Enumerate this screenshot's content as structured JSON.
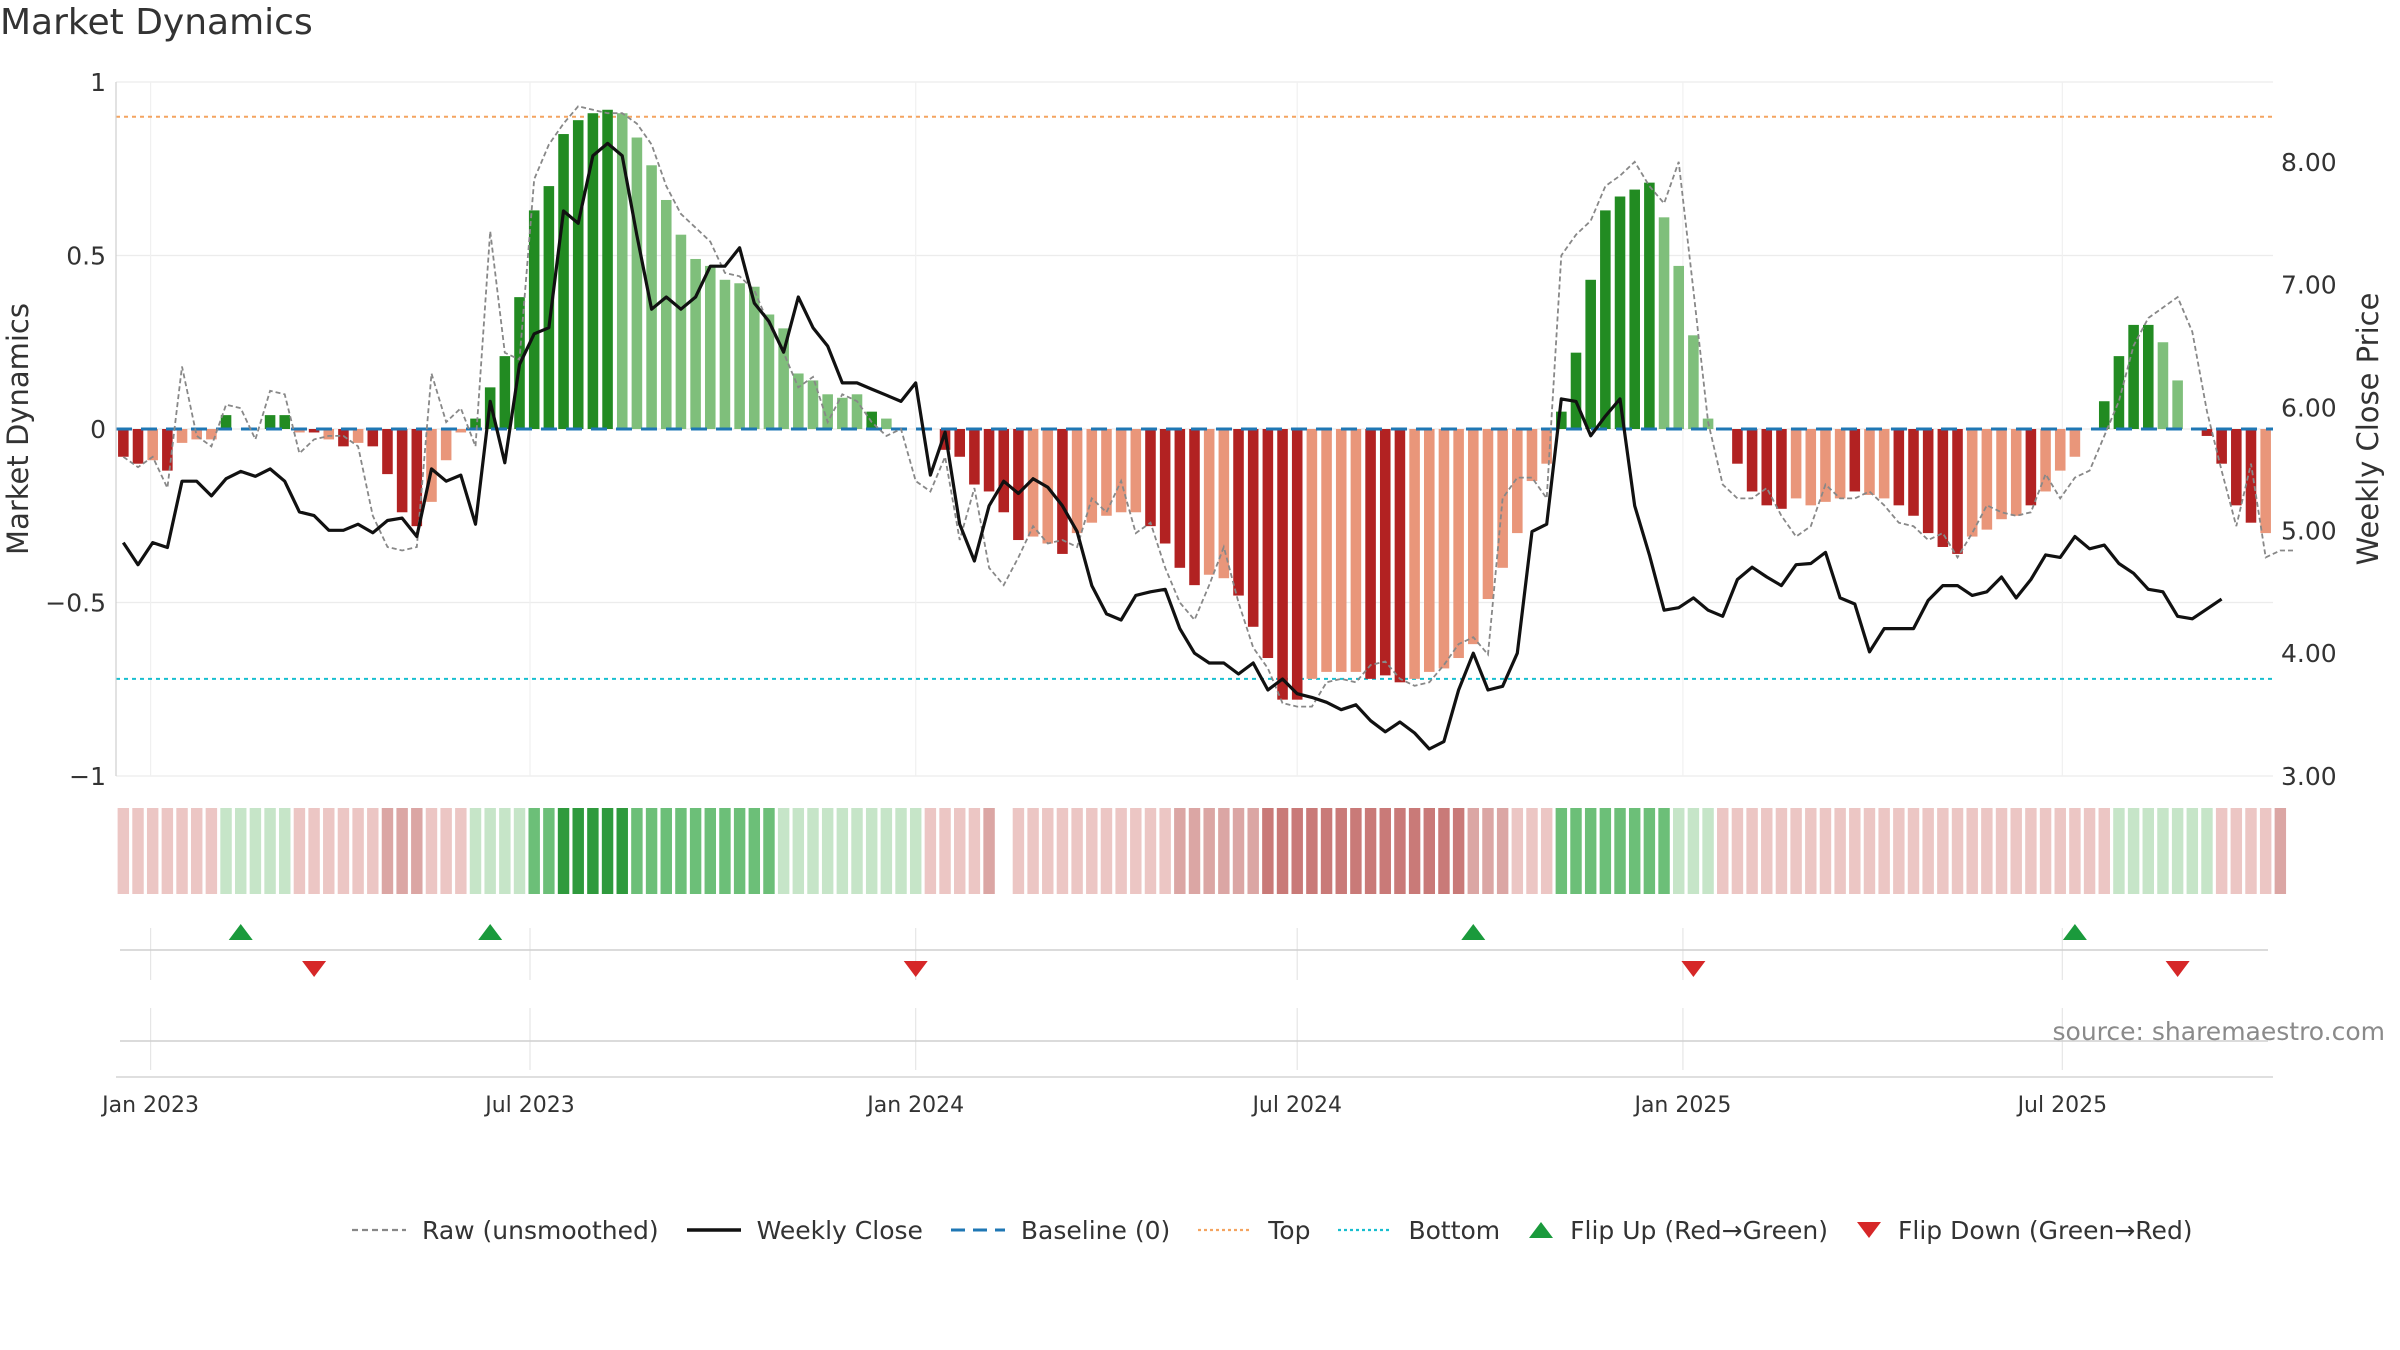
{
  "title": "Market Dynamics",
  "source": "source: sharemaestro.com",
  "colors": {
    "strong_green": "#228b22",
    "light_green": "#7fbf7b",
    "strong_red": "#b22222",
    "light_red": "#e9967a",
    "close_line": "#111111",
    "raw_line": "#888888",
    "baseline": "#1f77b4",
    "top": "#f4a460",
    "bottom": "#17becf",
    "flip_up": "#1a9a3c",
    "flip_down": "#d62728"
  },
  "legend": [
    {
      "label": "Raw (unsmoothed)",
      "icon": "dashed-gray-line"
    },
    {
      "label": "Weekly Close",
      "icon": "solid-black-line"
    },
    {
      "label": "Baseline (0)",
      "icon": "dashed-blue-line"
    },
    {
      "label": "Top",
      "icon": "dotted-orange-line"
    },
    {
      "label": "Bottom",
      "icon": "dotted-cyan-line"
    },
    {
      "label": "Flip Up (Red→Green)",
      "icon": "green-up-triangle"
    },
    {
      "label": "Flip Down (Green→Red)",
      "icon": "red-down-triangle"
    }
  ],
  "chart_data": {
    "type": "bar",
    "title": "Market Dynamics",
    "ylabel": "Market Dynamics",
    "y2label": "Weekly Close Price",
    "ylim": [
      -1,
      1
    ],
    "y2lim": [
      3.0,
      8.65
    ],
    "yticks": [
      "1",
      "0.5",
      "0",
      "−0.5",
      "−1"
    ],
    "y2ticks": [
      "8.00",
      "7.00",
      "6.00",
      "5.00",
      "4.00",
      "3.00"
    ],
    "xticks": [
      "Jan 2023",
      "Jul 2023",
      "Jan 2024",
      "Jul 2024",
      "Jan 2025",
      "Jul 2025"
    ],
    "top_line": 0.9,
    "bottom_line": -0.72,
    "baseline": 0,
    "grid": true,
    "legend_position": "bottom",
    "start_date": "2022-12-19",
    "bar_values": [
      -0.08,
      -0.1,
      -0.09,
      -0.12,
      -0.04,
      -0.03,
      -0.03,
      0.04,
      0.0,
      0.0,
      0.04,
      0.04,
      -0.01,
      -0.01,
      -0.03,
      -0.05,
      -0.04,
      -0.05,
      -0.13,
      -0.24,
      -0.28,
      -0.21,
      -0.09,
      -0.01,
      0.03,
      0.12,
      0.21,
      0.38,
      0.63,
      0.7,
      0.85,
      0.89,
      0.91,
      0.92,
      0.91,
      0.84,
      0.76,
      0.66,
      0.56,
      0.49,
      0.47,
      0.43,
      0.42,
      0.41,
      0.33,
      0.29,
      0.16,
      0.14,
      0.1,
      0.09,
      0.1,
      0.05,
      0.03,
      0.0,
      0.0,
      0.0,
      -0.06,
      -0.08,
      -0.16,
      -0.18,
      -0.24,
      -0.32,
      -0.31,
      -0.33,
      -0.36,
      -0.3,
      -0.27,
      -0.25,
      -0.24,
      -0.24,
      -0.28,
      -0.33,
      -0.4,
      -0.45,
      -0.42,
      -0.43,
      -0.48,
      -0.57,
      -0.66,
      -0.78,
      -0.78,
      -0.72,
      -0.7,
      -0.7,
      -0.7,
      -0.72,
      -0.71,
      -0.73,
      -0.72,
      -0.7,
      -0.69,
      -0.66,
      -0.62,
      -0.49,
      -0.4,
      -0.3,
      -0.15,
      -0.1,
      0.05,
      0.22,
      0.43,
      0.63,
      0.67,
      0.69,
      0.71,
      0.61,
      0.47,
      0.27,
      0.03,
      0.0,
      -0.1,
      -0.18,
      -0.22,
      -0.23,
      -0.2,
      -0.22,
      -0.21,
      -0.2,
      -0.18,
      -0.19,
      -0.2,
      -0.22,
      -0.25,
      -0.3,
      -0.34,
      -0.36,
      -0.31,
      -0.29,
      -0.26,
      -0.25,
      -0.22,
      -0.18,
      -0.12,
      -0.08,
      0.0,
      0.08,
      0.21,
      0.3,
      0.3,
      0.25,
      0.14,
      0.0,
      -0.02,
      -0.1,
      -0.22,
      -0.27,
      -0.3
    ],
    "strength_codes": [
      2,
      2,
      1,
      2,
      1,
      1,
      1,
      2,
      0,
      0,
      2,
      2,
      1,
      2,
      1,
      2,
      1,
      2,
      2,
      2,
      2,
      1,
      1,
      1,
      2,
      2,
      2,
      2,
      2,
      2,
      2,
      2,
      2,
      2,
      1,
      1,
      1,
      1,
      1,
      1,
      1,
      1,
      1,
      1,
      1,
      1,
      1,
      1,
      1,
      1,
      1,
      2,
      1,
      0,
      0,
      0,
      2,
      2,
      2,
      2,
      2,
      2,
      1,
      1,
      2,
      1,
      1,
      1,
      1,
      1,
      2,
      2,
      2,
      2,
      1,
      1,
      2,
      2,
      2,
      2,
      2,
      1,
      1,
      1,
      1,
      2,
      2,
      2,
      1,
      1,
      1,
      1,
      1,
      1,
      1,
      1,
      1,
      1,
      2,
      2,
      2,
      2,
      2,
      2,
      2,
      1,
      1,
      1,
      1,
      0,
      2,
      2,
      2,
      2,
      1,
      1,
      1,
      1,
      2,
      1,
      1,
      2,
      2,
      2,
      2,
      2,
      1,
      1,
      1,
      1,
      2,
      1,
      1,
      1,
      0,
      2,
      2,
      2,
      2,
      1,
      1,
      0,
      2,
      2,
      2,
      2
    ],
    "raw_values": [
      -0.08,
      -0.11,
      -0.08,
      -0.17,
      0.18,
      -0.02,
      -0.05,
      0.07,
      0.06,
      -0.03,
      0.11,
      0.1,
      -0.07,
      -0.03,
      -0.02,
      -0.02,
      -0.05,
      -0.25,
      -0.34,
      -0.35,
      -0.34,
      0.16,
      0.02,
      0.06,
      -0.05,
      0.57,
      0.22,
      0.2,
      0.72,
      0.82,
      0.88,
      0.93,
      0.92,
      0.91,
      0.91,
      0.88,
      0.82,
      0.7,
      0.62,
      0.58,
      0.54,
      0.45,
      0.44,
      0.4,
      0.3,
      0.22,
      0.12,
      0.15,
      0.02,
      0.1,
      0.08,
      0.02,
      -0.02,
      0.0,
      -0.15,
      -0.18,
      -0.08,
      -0.32,
      -0.17,
      -0.4,
      -0.45,
      -0.37,
      -0.28,
      -0.33,
      -0.32,
      -0.34,
      -0.2,
      -0.24,
      -0.15,
      -0.3,
      -0.27,
      -0.4,
      -0.5,
      -0.55,
      -0.45,
      -0.34,
      -0.5,
      -0.63,
      -0.69,
      -0.79,
      -0.8,
      -0.8,
      -0.73,
      -0.72,
      -0.73,
      -0.68,
      -0.67,
      -0.72,
      -0.74,
      -0.73,
      -0.68,
      -0.62,
      -0.6,
      -0.65,
      -0.2,
      -0.14,
      -0.14,
      -0.2,
      0.5,
      0.56,
      0.6,
      0.7,
      0.73,
      0.77,
      0.7,
      0.65,
      0.77,
      0.4,
      0.02,
      -0.16,
      -0.2,
      -0.2,
      -0.17,
      -0.25,
      -0.31,
      -0.28,
      -0.16,
      -0.2,
      -0.2,
      -0.18,
      -0.22,
      -0.27,
      -0.28,
      -0.32,
      -0.3,
      -0.37,
      -0.3,
      -0.22,
      -0.24,
      -0.25,
      -0.24,
      -0.13,
      -0.2,
      -0.14,
      -0.12,
      -0.02,
      0.08,
      0.24,
      0.32,
      0.35,
      0.38,
      0.28,
      0.05,
      -0.12,
      -0.28,
      -0.1,
      -0.37,
      -0.35,
      -0.35
    ],
    "close_values": [
      4.9,
      4.72,
      4.9,
      4.86,
      5.4,
      5.4,
      5.28,
      5.42,
      5.48,
      5.44,
      5.5,
      5.4,
      5.15,
      5.12,
      5.0,
      5.0,
      5.05,
      4.98,
      5.08,
      5.1,
      4.95,
      5.5,
      5.4,
      5.45,
      5.05,
      6.05,
      5.55,
      6.35,
      6.6,
      6.65,
      7.6,
      7.5,
      8.05,
      8.15,
      8.05,
      7.4,
      6.8,
      6.9,
      6.8,
      6.9,
      7.15,
      7.15,
      7.3,
      6.85,
      6.7,
      6.45,
      6.9,
      6.65,
      6.5,
      6.2,
      6.2,
      6.15,
      6.1,
      6.05,
      6.2,
      5.45,
      5.8,
      5.05,
      4.75,
      5.2,
      5.4,
      5.3,
      5.42,
      5.35,
      5.2,
      4.99,
      4.55,
      4.32,
      4.27,
      4.47,
      4.5,
      4.52,
      4.2,
      4.0,
      3.92,
      3.92,
      3.83,
      3.92,
      3.7,
      3.79,
      3.67,
      3.64,
      3.6,
      3.54,
      3.58,
      3.45,
      3.36,
      3.44,
      3.35,
      3.22,
      3.28,
      3.7,
      4.0,
      3.7,
      3.73,
      4.0,
      4.99,
      5.05,
      6.07,
      6.05,
      5.77,
      5.93,
      6.07,
      5.2,
      4.8,
      4.35,
      4.37,
      4.45,
      4.35,
      4.3,
      4.6,
      4.7,
      4.62,
      4.55,
      4.72,
      4.73,
      4.82,
      4.45,
      4.4,
      4.01,
      4.2,
      4.2,
      4.2,
      4.43,
      4.55,
      4.55,
      4.47,
      4.5,
      4.62,
      4.45,
      4.6,
      4.8,
      4.78,
      4.95,
      4.85,
      4.88,
      4.73,
      4.65,
      4.52,
      4.5,
      4.3,
      4.28,
      4.36,
      4.44
    ],
    "color_strip_levels": [
      -1,
      -1,
      -1,
      -1,
      -1,
      -1,
      -1,
      1,
      1,
      1,
      1,
      1,
      -1,
      -1,
      -1,
      -1,
      -1,
      -1,
      -2,
      -2,
      -2,
      -1,
      -1,
      -1,
      1,
      1,
      1,
      1,
      2,
      2,
      3,
      3,
      3,
      3,
      3,
      2,
      2,
      2,
      2,
      2,
      2,
      2,
      2,
      2,
      2,
      1,
      1,
      1,
      1,
      1,
      1,
      1,
      1,
      1,
      1,
      -1,
      -1,
      -1,
      -1,
      -2,
      null,
      -1,
      -1,
      -1,
      -1,
      -1,
      -1,
      -1,
      -1,
      -1,
      -1,
      -1,
      -2,
      -2,
      -2,
      -2,
      -2,
      -2,
      -3,
      -3,
      -3,
      -3,
      -3,
      -3,
      -3,
      -3,
      -3,
      -3,
      -3,
      -3,
      -3,
      -3,
      -2,
      -2,
      -2,
      -1,
      -1,
      -1,
      2,
      2,
      2,
      2,
      2,
      2,
      2,
      2,
      1,
      1,
      1,
      -1,
      -1,
      -1,
      -1,
      -1,
      -1,
      -1,
      -1,
      -1,
      -1,
      -1,
      -1,
      -1,
      -1,
      -1,
      -1,
      -1,
      -1,
      -1,
      -1,
      -1,
      -1,
      -1,
      -1,
      -1,
      -1,
      -1,
      1,
      1,
      1,
      1,
      1,
      1,
      1,
      -1,
      -1,
      -1,
      -1,
      -2
    ],
    "flip_up_dates": [
      "2023-02-13",
      "2023-06-12",
      "2024-09-23",
      "2025-07-07"
    ],
    "flip_down_dates": [
      "2023-03-20",
      "2024-01-01",
      "2025-01-06",
      "2025-08-25"
    ]
  }
}
